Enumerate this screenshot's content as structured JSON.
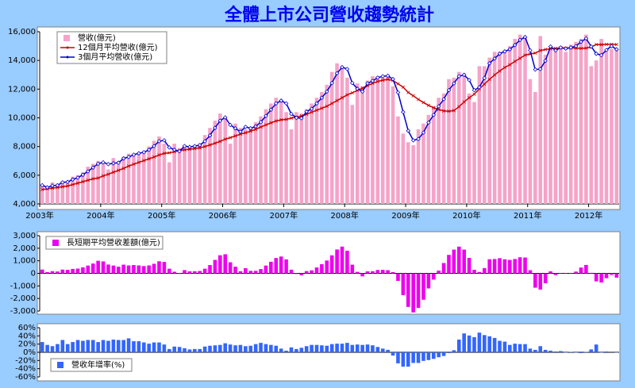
{
  "chart_data": [
    {
      "type": "bar",
      "title": "全體上市公司營收趨勢統計",
      "categories": [
        "2003年",
        null,
        null,
        null,
        null,
        null,
        null,
        null,
        null,
        null,
        null,
        null,
        "2004年",
        null,
        null,
        null,
        null,
        null,
        null,
        null,
        null,
        null,
        null,
        null,
        "2005年",
        null,
        null,
        null,
        null,
        null,
        null,
        null,
        null,
        null,
        null,
        null,
        "2006年",
        null,
        null,
        null,
        null,
        null,
        null,
        null,
        null,
        null,
        null,
        null,
        "2007年",
        null,
        null,
        null,
        null,
        null,
        null,
        null,
        null,
        null,
        null,
        null,
        "2008年",
        null,
        null,
        null,
        null,
        null,
        null,
        null,
        null,
        null,
        null,
        null,
        "2009年",
        null,
        null,
        null,
        null,
        null,
        null,
        null,
        null,
        null,
        null,
        null,
        "2010年",
        null,
        null,
        null,
        null,
        null,
        null,
        null,
        null,
        null,
        null,
        null,
        "2011年",
        null,
        null,
        null,
        null,
        null,
        null,
        null,
        null,
        null,
        null,
        null,
        "2012年",
        null,
        null,
        null,
        null,
        null
      ],
      "ylim": [
        4000,
        16000
      ],
      "yticks": [
        {
          "value": 4000,
          "label": "4,000"
        },
        {
          "value": 6000,
          "label": "6,000"
        },
        {
          "value": 8000,
          "label": "8,000"
        },
        {
          "value": 10000,
          "label": "10,000"
        },
        {
          "value": 12000,
          "label": "12,000"
        },
        {
          "value": 14000,
          "label": "14,000"
        },
        {
          "value": 16000,
          "label": "16,000"
        }
      ],
      "series": [
        {
          "name": "營收(億元)",
          "type": "bar",
          "color": "#f5a3c9",
          "values": [
            5300,
            5000,
            5500,
            5400,
            5600,
            5600,
            5900,
            6000,
            6200,
            6600,
            6800,
            7000,
            6900,
            6400,
            7200,
            7000,
            7300,
            7500,
            7500,
            7600,
            7700,
            8000,
            8400,
            8700,
            8200,
            6900,
            8200,
            7900,
            8000,
            8000,
            8100,
            8200,
            8800,
            9300,
            9800,
            10300,
            10000,
            8200,
            9600,
            9300,
            9200,
            9300,
            9700,
            10100,
            10600,
            11000,
            11400,
            11200,
            10400,
            9200,
            10400,
            10300,
            10600,
            11000,
            11400,
            11800,
            12300,
            13200,
            13800,
            13600,
            12800,
            10900,
            12400,
            12200,
            12600,
            12900,
            12900,
            12900,
            13000,
            12200,
            10100,
            8900,
            8300,
            8100,
            9200,
            9600,
            10200,
            10800,
            11400,
            11700,
            12700,
            12800,
            13200,
            13000,
            11700,
            11100,
            13600,
            13600,
            14200,
            14600,
            14600,
            14700,
            15000,
            15500,
            15800,
            15600,
            12700,
            11800,
            15700,
            14400,
            14800,
            14900,
            15000,
            14600,
            15100,
            15300,
            15500,
            15800,
            13600,
            14000,
            15500,
            14700,
            14800,
            14800
          ]
        },
        {
          "name": "12個月平均營收(億元)",
          "type": "line",
          "color": "#cc0000",
          "values": [
            5000,
            5050,
            5100,
            5150,
            5200,
            5250,
            5350,
            5450,
            5550,
            5650,
            5750,
            5800,
            5950,
            6070,
            6210,
            6340,
            6480,
            6640,
            6770,
            6900,
            7020,
            7140,
            7270,
            7410,
            7520,
            7560,
            7640,
            7710,
            7770,
            7810,
            7860,
            7910,
            8000,
            8110,
            8230,
            8360,
            8510,
            8620,
            8740,
            8860,
            8960,
            9070,
            9200,
            9360,
            9510,
            9650,
            9780,
            9860,
            9890,
            9980,
            10050,
            10130,
            10250,
            10390,
            10530,
            10670,
            10810,
            11000,
            11200,
            11400,
            11600,
            11740,
            11910,
            12070,
            12240,
            12400,
            12530,
            12620,
            12680,
            12600,
            12370,
            12140,
            11770,
            11540,
            11280,
            11070,
            10870,
            10700,
            10580,
            10480,
            10460,
            10510,
            10770,
            11110,
            11400,
            11650,
            12020,
            12350,
            12680,
            12990,
            13260,
            13510,
            13700,
            13930,
            14150,
            14370,
            14450,
            14510,
            14690,
            14760,
            14810,
            14840,
            14870,
            14860,
            14870,
            14860,
            14840,
            14860,
            14930,
            15110,
            15100,
            15120,
            15120,
            15110
          ]
        },
        {
          "name": "3個月平均營收(億元)",
          "type": "line",
          "color": "#0000cc",
          "values": [
            5300,
            5150,
            5270,
            5300,
            5500,
            5530,
            5700,
            5830,
            6030,
            6270,
            6530,
            6800,
            6900,
            6770,
            6830,
            6870,
            7170,
            7270,
            7430,
            7530,
            7600,
            7770,
            8030,
            8370,
            8430,
            7930,
            7770,
            7670,
            8030,
            7970,
            8030,
            8100,
            8370,
            8770,
            9300,
            9800,
            10030,
            9500,
            9270,
            9030,
            9370,
            9270,
            9400,
            9700,
            10130,
            10570,
            11000,
            11200,
            11000,
            10270,
            10000,
            9970,
            10430,
            10630,
            11000,
            11400,
            11830,
            12430,
            13100,
            13530,
            13400,
            12430,
            12030,
            11830,
            12400,
            12570,
            12800,
            12900,
            12930,
            12700,
            11770,
            10400,
            9100,
            8430,
            8530,
            8970,
            9670,
            10200,
            10800,
            11300,
            11930,
            12400,
            12900,
            13000,
            12630,
            11930,
            12130,
            12770,
            13800,
            14130,
            14470,
            14630,
            14770,
            15070,
            15430,
            15630,
            14700,
            13370,
            13400,
            13970,
            14970,
            14700,
            14900,
            14830,
            14900,
            15000,
            15300,
            15530,
            14970,
            14470,
            14370,
            14730,
            15000,
            14770
          ]
        }
      ]
    },
    {
      "type": "bar",
      "ylim": [
        -3000,
        3000
      ],
      "yticks": [
        {
          "value": -3000,
          "label": "-3,000"
        },
        {
          "value": -2000,
          "label": "-2,000"
        },
        {
          "value": -1000,
          "label": "-1,000"
        },
        0,
        {
          "value": 1000,
          "label": "1,000"
        },
        {
          "value": 2000,
          "label": "2,000"
        },
        {
          "value": 3000,
          "label": "3,000"
        }
      ],
      "series": [
        {
          "name": "長短期平均營收差額(億元)",
          "type": "bar",
          "color": "#ee00ee",
          "values": [
            300,
            100,
            170,
            150,
            300,
            280,
            350,
            380,
            480,
            620,
            780,
            1000,
            950,
            700,
            620,
            530,
            690,
            630,
            660,
            630,
            580,
            630,
            760,
            960,
            910,
            370,
            130,
            -40,
            260,
            160,
            170,
            190,
            370,
            660,
            1070,
            1440,
            1520,
            880,
            530,
            170,
            410,
            200,
            200,
            340,
            620,
            920,
            1220,
            1340,
            1110,
            290,
            -50,
            -160,
            180,
            240,
            470,
            730,
            1020,
            1430,
            1900,
            2130,
            1800,
            690,
            120,
            -240,
            160,
            170,
            270,
            280,
            250,
            100,
            -600,
            -1740,
            -2670,
            -3110,
            -2750,
            -2100,
            -1200,
            -500,
            220,
            820,
            1470,
            1890,
            2130,
            1890,
            1230,
            280,
            110,
            420,
            1120,
            1140,
            1210,
            1120,
            1070,
            1140,
            1280,
            1260,
            250,
            -1140,
            -1290,
            -790,
            160,
            -140,
            30,
            -30,
            30,
            140,
            460,
            670,
            40,
            -640,
            -730,
            -390,
            -120,
            -340
          ]
        }
      ]
    },
    {
      "type": "bar",
      "ylim": [
        -60,
        60
      ],
      "yticks": [
        {
          "value": -60,
          "label": "-60%"
        },
        {
          "value": -40,
          "label": "-40%"
        },
        {
          "value": -20,
          "label": "-20%"
        },
        {
          "value": 0,
          "label": "0%"
        },
        {
          "value": 20,
          "label": "20%"
        },
        {
          "value": 40,
          "label": "40%"
        },
        {
          "value": 60,
          "label": "60%"
        }
      ],
      "series": [
        {
          "name": "營收年增率(%)",
          "type": "bar",
          "color": "#3366ff",
          "values": [
            25,
            18,
            15,
            20,
            30,
            20,
            25,
            30,
            28,
            30,
            30,
            25,
            30,
            28,
            31,
            30,
            30,
            34,
            27,
            27,
            24,
            21,
            24,
            24,
            19,
            8,
            14,
            13,
            10,
            7,
            8,
            8,
            14,
            16,
            17,
            18,
            22,
            19,
            17,
            18,
            15,
            16,
            20,
            23,
            20,
            18,
            16,
            9,
            4,
            12,
            8,
            11,
            15,
            18,
            18,
            17,
            16,
            20,
            21,
            21,
            23,
            18,
            19,
            18,
            19,
            17,
            13,
            9,
            6,
            -8,
            -27,
            -35,
            -35,
            -26,
            -26,
            -21,
            -19,
            -16,
            -12,
            -9,
            -2,
            5,
            31,
            46,
            41,
            37,
            48,
            42,
            39,
            35,
            28,
            26,
            18,
            21,
            20,
            20,
            9,
            6,
            15,
            6,
            4,
            2,
            3,
            -1,
            1,
            -1,
            -2,
            1,
            7,
            19,
            -1,
            2,
            0,
            -1
          ]
        }
      ]
    }
  ]
}
